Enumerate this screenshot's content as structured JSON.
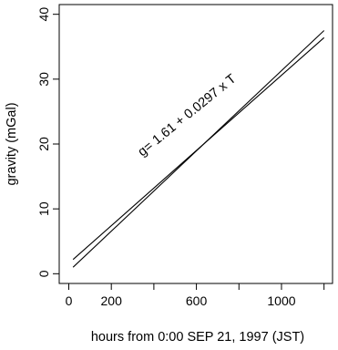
{
  "chart_data": {
    "type": "line",
    "title": "",
    "xlabel": "hours from 0:00 SEP 21, 1997 (JST)",
    "ylabel": "gravity (mGal)",
    "xlim": [
      -45,
      1240
    ],
    "ylim": [
      -1.5,
      41.5
    ],
    "x_ticks": [
      0,
      200,
      400,
      600,
      800,
      1000,
      1200
    ],
    "x_tick_labels": [
      "0",
      "200",
      "",
      "600",
      "",
      "1000",
      ""
    ],
    "y_ticks": [
      0,
      10,
      20,
      30,
      40
    ],
    "y_tick_labels": [
      "0",
      "10",
      "20",
      "30",
      "40"
    ],
    "grid": false,
    "legend": "none",
    "series": [
      {
        "x": [
          20,
          1200
        ],
        "y": [
          1.0,
          37.5
        ]
      },
      {
        "x": [
          20,
          1200
        ],
        "y": [
          2.2,
          36.4
        ]
      }
    ],
    "annotation": "g= 1.61 + 0.0297 x T",
    "line_color": "#000000"
  }
}
